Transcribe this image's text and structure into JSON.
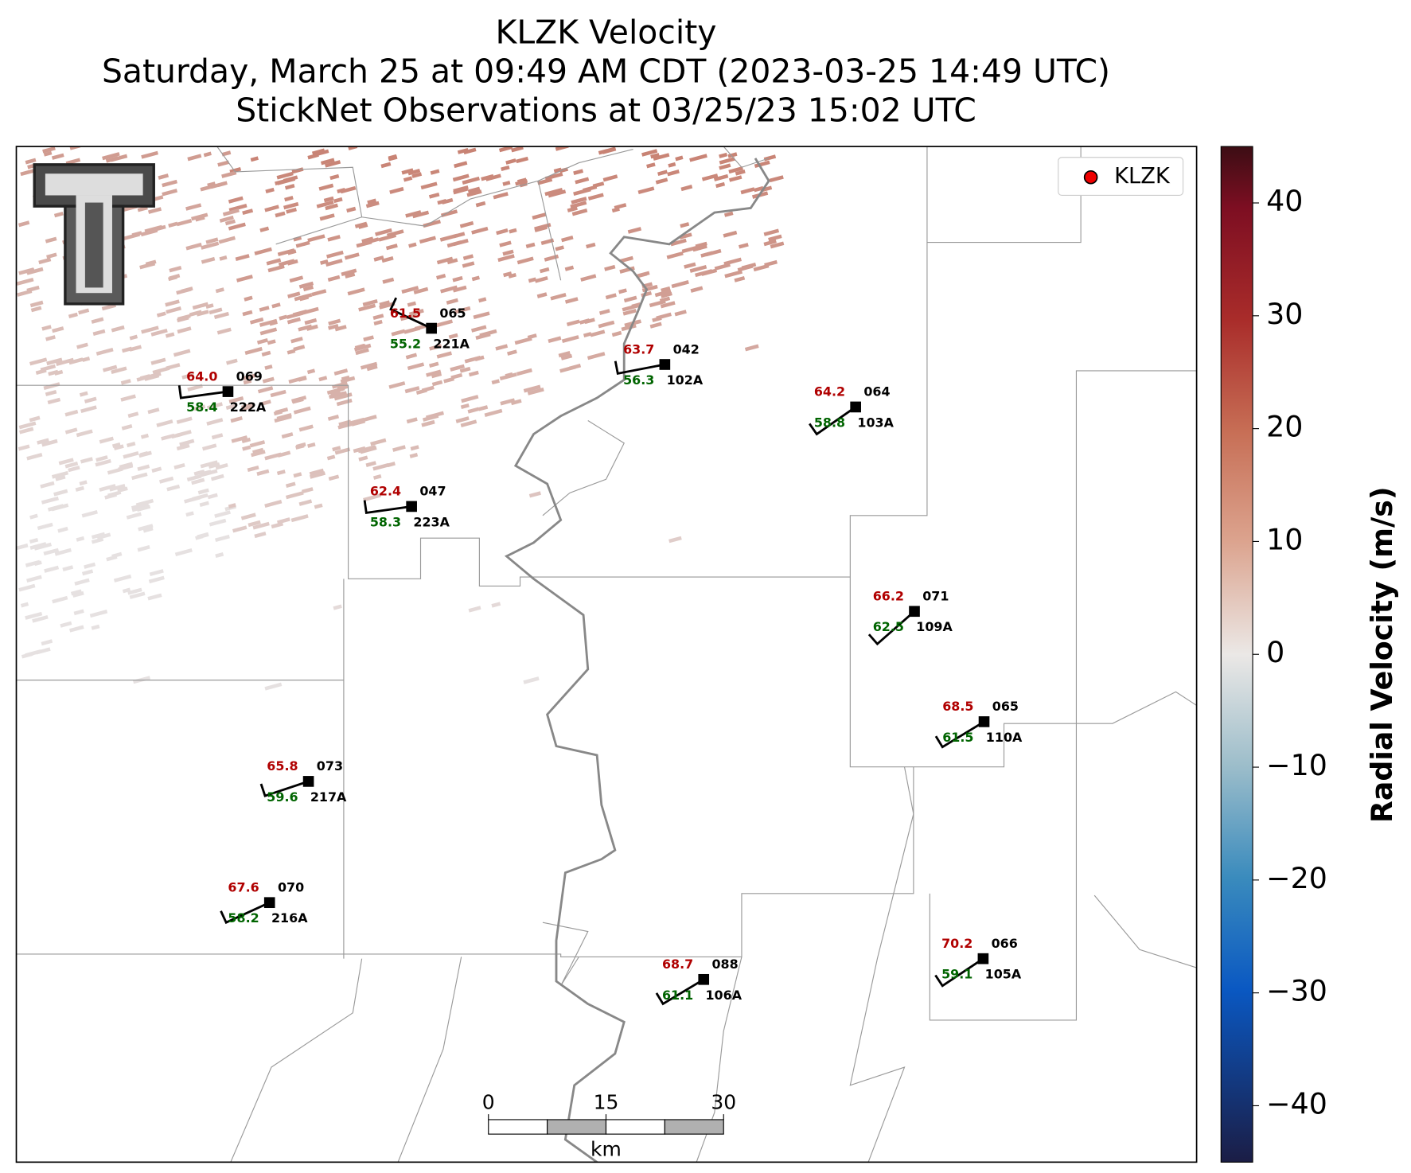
{
  "titles": [
    "KLZK Velocity",
    "Saturday, March 25 at 09:49 AM CDT (2023-03-25 14:49 UTC)",
    "StickNet Observations at 03/25/23 15:02 UTC"
  ],
  "legend": {
    "label": "KLZK"
  },
  "colorbar": {
    "label": "Radial Velocity (m/s)",
    "range": [
      -45,
      45
    ],
    "ticks": [
      {
        "value": 40,
        "label": "40"
      },
      {
        "value": 30,
        "label": "30"
      },
      {
        "value": 20,
        "label": "20"
      },
      {
        "value": 10,
        "label": "10"
      },
      {
        "value": 0,
        "label": "0"
      },
      {
        "value": -10,
        "label": "−10"
      },
      {
        "value": -20,
        "label": "−20"
      },
      {
        "value": -30,
        "label": "−30"
      },
      {
        "value": -40,
        "label": "−40"
      }
    ]
  },
  "scale_bar": {
    "range": [
      0,
      30
    ],
    "ticks": [
      0,
      15,
      30
    ],
    "unit": "km"
  },
  "stations": [
    {
      "id": "221A",
      "temperature": "61.5",
      "pressure": "065",
      "dewpoint": "55.2"
    },
    {
      "id": "222A",
      "temperature": "64.0",
      "pressure": "069",
      "dewpoint": "58.4"
    },
    {
      "id": "102A",
      "temperature": "63.7",
      "pressure": "042",
      "dewpoint": "56.3"
    },
    {
      "id": "103A",
      "temperature": "64.2",
      "pressure": "064",
      "dewpoint": "58.8"
    },
    {
      "id": "223A",
      "temperature": "62.4",
      "pressure": "047",
      "dewpoint": "58.3"
    },
    {
      "id": "109A",
      "temperature": "66.2",
      "pressure": "071",
      "dewpoint": "62.5"
    },
    {
      "id": "110A",
      "temperature": "68.5",
      "pressure": "065",
      "dewpoint": "61.5"
    },
    {
      "id": "217A",
      "temperature": "65.8",
      "pressure": "073",
      "dewpoint": "59.6"
    },
    {
      "id": "216A",
      "temperature": "67.6",
      "pressure": "070",
      "dewpoint": "58.2"
    },
    {
      "id": "106A",
      "temperature": "68.7",
      "pressure": "088",
      "dewpoint": "61.1"
    },
    {
      "id": "105A",
      "temperature": "70.2",
      "pressure": "066",
      "dewpoint": "59.1"
    }
  ]
}
